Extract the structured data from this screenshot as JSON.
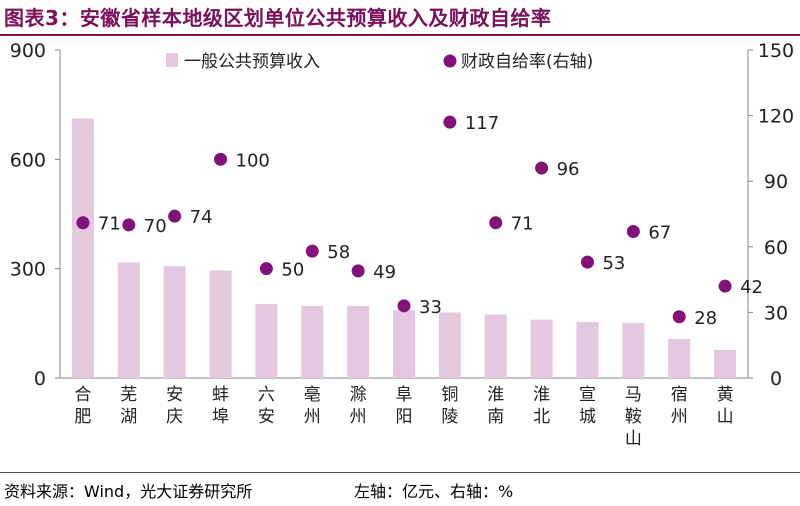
{
  "title": "图表3：安徽省样本地级区划单位公共预算收入及财政自给率",
  "footer": {
    "source": "资料来源：Wind，光大证券研究所",
    "units": "左轴：亿元、右轴：%"
  },
  "colors": {
    "title": "#7b0f5c",
    "bar": "#e3c8e0",
    "dot": "#82117a"
  },
  "chart_data": {
    "type": "bar",
    "categories": [
      "合肥",
      "芜湖",
      "安庆",
      "蚌埠",
      "六安",
      "亳州",
      "滁州",
      "阜阳",
      "铜陵",
      "淮南",
      "淮北",
      "宣城",
      "马鞍山",
      "宿州",
      "黄山"
    ],
    "series": [
      {
        "name": "一般公共预算收入",
        "type": "bar",
        "axis": "left",
        "values": [
          712,
          317,
          307,
          295,
          203,
          198,
          198,
          186,
          180,
          174,
          160,
          154,
          151,
          107,
          77
        ]
      },
      {
        "name": "财政自给率(右轴)",
        "type": "scatter",
        "axis": "right",
        "values": [
          71,
          70,
          74,
          100,
          50,
          58,
          49,
          33,
          117,
          71,
          96,
          53,
          67,
          28,
          42
        ],
        "labels": [
          "71",
          "70",
          "74",
          "100",
          "50",
          "58",
          "49",
          "33",
          "117",
          "71",
          "96",
          "53",
          "67",
          "28",
          "42"
        ]
      }
    ],
    "y_left": {
      "min": 0,
      "max": 900,
      "ticks": [
        "0",
        "300",
        "600",
        "900"
      ]
    },
    "y_right": {
      "min": 0,
      "max": 150,
      "ticks": [
        "0",
        "30",
        "60",
        "90",
        "120",
        "150"
      ]
    },
    "legend_position": "top"
  }
}
